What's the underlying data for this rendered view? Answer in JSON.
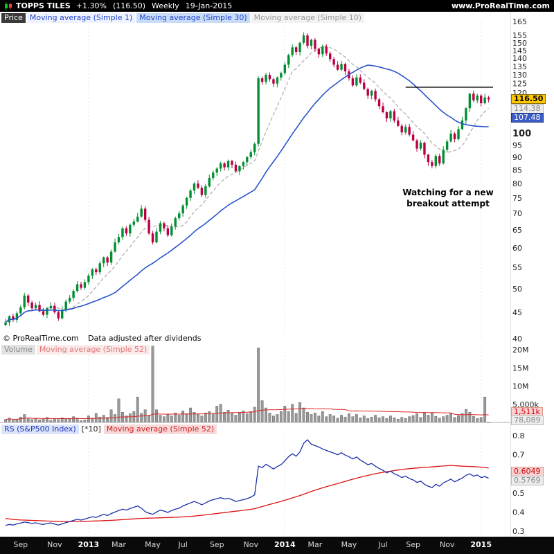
{
  "header": {
    "symbol": "TOPPS TILES",
    "change": "+1.30%",
    "last_price": "(116.50)",
    "timeframe": "Weekly",
    "date": "19-Jan-2015",
    "site": "www.ProRealTime.com"
  },
  "price_pane": {
    "legend": {
      "price": "Price",
      "ma1": "Moving average (Simple 1)",
      "ma30": "Moving average (Simple 30)",
      "ma10": "Moving average (Simple 10)"
    },
    "annotation": "Watching for a new breakout attempt",
    "footer_copyright": "© ProRealTime.com",
    "footer_note": "Data adjusted after dividends"
  },
  "volume_pane": {
    "legend": {
      "volume": "Volume",
      "ma52": "Moving average (Simple 52)"
    }
  },
  "rs_pane": {
    "legend": {
      "rs": "RS (S&P500 Index)",
      "multiplier": "[*10]",
      "ma52": "Moving average (Simple 52)"
    }
  },
  "badges": {
    "price_last": "116.50",
    "price_ma10": "114.38",
    "price_ma30": "107.48",
    "volume_ma": "1,511k",
    "volume_last": "78,089",
    "rs_ma": "0.6049",
    "rs_last": "0.5769"
  },
  "colors": {
    "candle_up": "#009030",
    "candle_down": "#bb0045",
    "ma30": "#2952cc",
    "ma10": "#b0b0b0",
    "volume_bar": "#999999",
    "volume_ma": "#dd2222",
    "rs_line": "#1a2fa8",
    "rs_ma": "#dd1111",
    "resistance": "#000000"
  },
  "x_axis": {
    "labels": [
      {
        "text": "Sep",
        "week": 4,
        "year": false
      },
      {
        "text": "Nov",
        "week": 13,
        "year": false
      },
      {
        "text": "2013",
        "week": 22,
        "year": true
      },
      {
        "text": "Mar",
        "week": 30,
        "year": false
      },
      {
        "text": "May",
        "week": 39,
        "year": false
      },
      {
        "text": "Jul",
        "week": 47,
        "year": false
      },
      {
        "text": "Sep",
        "week": 56,
        "year": false
      },
      {
        "text": "Nov",
        "week": 65,
        "year": false
      },
      {
        "text": "2014",
        "week": 74,
        "year": true
      },
      {
        "text": "Mar",
        "week": 82,
        "year": false
      },
      {
        "text": "May",
        "week": 91,
        "year": false
      },
      {
        "text": "Jul",
        "week": 100,
        "year": false
      },
      {
        "text": "Sep",
        "week": 108,
        "year": false
      },
      {
        "text": "Nov",
        "week": 117,
        "year": false
      },
      {
        "text": "2015",
        "week": 126,
        "year": true
      }
    ]
  },
  "chart_data": [
    {
      "type": "candlestick",
      "title": "TOPPS TILES weekly price",
      "x_unit": "week",
      "x_range": "Aug-2012 to 19-Jan-2015",
      "scale": "log",
      "ylim": [
        40,
        165
      ],
      "axis_ticks": [
        165,
        155,
        150,
        145,
        140,
        135,
        130,
        125,
        120,
        100,
        95,
        90,
        85,
        80,
        75,
        70,
        65,
        60,
        55,
        50,
        45,
        40
      ],
      "last_close": 116.5,
      "ma10_last": 114.38,
      "ma30_last": 107.48,
      "resistance_level": 123,
      "resistance_start_week": 106,
      "annotation": "Watching for a new breakout attempt",
      "closes": [
        43.0,
        44.2,
        43.5,
        44.8,
        46.0,
        48.5,
        47.0,
        45.8,
        46.5,
        45.2,
        44.5,
        45.8,
        46.3,
        45.0,
        43.8,
        45.5,
        47.2,
        48.0,
        49.5,
        51.0,
        50.2,
        51.5,
        53.0,
        54.5,
        53.8,
        56.0,
        57.5,
        56.2,
        59.0,
        61.5,
        63.0,
        65.5,
        64.0,
        66.5,
        67.5,
        69.0,
        71.5,
        68.0,
        64.0,
        61.5,
        64.5,
        67.0,
        65.5,
        63.5,
        66.0,
        68.5,
        70.0,
        72.5,
        75.0,
        77.5,
        80.0,
        78.5,
        76.0,
        79.0,
        82.0,
        84.0,
        85.5,
        87.5,
        86.0,
        88.5,
        87.0,
        84.5,
        86.5,
        88.0,
        90.0,
        92.0,
        95.5,
        128.0,
        126.0,
        130.0,
        127.5,
        125.0,
        128.5,
        131.0,
        136.0,
        142.0,
        147.0,
        144.0,
        150.0,
        155.0,
        148.0,
        152.0,
        146.0,
        142.5,
        147.5,
        143.0,
        139.5,
        136.0,
        133.0,
        136.5,
        132.0,
        128.0,
        124.0,
        128.5,
        125.5,
        122.0,
        118.5,
        121.0,
        116.5,
        113.0,
        110.0,
        107.0,
        110.5,
        106.0,
        103.5,
        100.5,
        103.0,
        99.5,
        97.0,
        93.5,
        96.0,
        91.0,
        88.0,
        86.5,
        90.5,
        87.5,
        93.0,
        96.5,
        100.0,
        97.5,
        102.0,
        106.0,
        112.0,
        119.5,
        116.0,
        118.5,
        114.5,
        117.5,
        116.5
      ]
    },
    {
      "type": "bar",
      "name": "volume",
      "units": "millions of shares",
      "ylim_millions": [
        0,
        21
      ],
      "axis_tick_labels": [
        "20M",
        "15M",
        "10M",
        "5,000k"
      ],
      "axis_tick_values": [
        20,
        15,
        10,
        5
      ],
      "ma52_last_label": "1,511k",
      "last_value_label": "78,089",
      "values_millions": [
        0.8,
        1.2,
        0.6,
        0.9,
        1.5,
        2.2,
        1.0,
        0.8,
        1.2,
        0.7,
        0.9,
        1.4,
        0.6,
        1.0,
        0.8,
        1.3,
        1.1,
        0.9,
        1.6,
        1.2,
        0.5,
        0.7,
        1.8,
        1.2,
        2.5,
        1.5,
        2.0,
        1.4,
        3.5,
        2.2,
        6.5,
        2.8,
        1.8,
        2.4,
        3.0,
        7.0,
        2.5,
        3.5,
        2.0,
        21.0,
        3.5,
        2.0,
        1.6,
        2.2,
        1.8,
        2.6,
        2.0,
        3.2,
        2.4,
        4.0,
        2.8,
        2.2,
        1.8,
        2.6,
        3.0,
        2.4,
        4.5,
        5.0,
        2.8,
        3.4,
        2.6,
        2.0,
        2.8,
        3.2,
        2.4,
        3.0,
        4.2,
        20.5,
        6.0,
        4.0,
        2.6,
        1.8,
        2.2,
        3.0,
        4.5,
        3.0,
        5.0,
        2.5,
        5.5,
        4.0,
        2.8,
        2.2,
        2.6,
        1.8,
        3.0,
        1.6,
        2.2,
        1.8,
        1.2,
        2.0,
        1.5,
        2.4,
        1.6,
        2.2,
        1.3,
        1.8,
        1.1,
        1.5,
        2.0,
        1.3,
        1.6,
        1.1,
        1.8,
        1.3,
        0.9,
        1.4,
        1.1,
        1.6,
        1.9,
        2.4,
        1.4,
        2.8,
        2.0,
        2.6,
        1.7,
        1.2,
        1.6,
        2.0,
        2.6,
        1.4,
        1.9,
        2.4,
        3.6,
        2.8,
        1.7,
        1.1,
        1.4,
        7.0,
        0.078
      ]
    },
    {
      "type": "line",
      "name": "RS vs S&P500 Index [*10]",
      "ylim": [
        0.27,
        0.85
      ],
      "axis_ticks": [
        0.8,
        0.7,
        0.5,
        0.4,
        0.3
      ],
      "ma52_last": 0.6049,
      "last_value": 0.5769,
      "values": [
        0.33,
        0.335,
        0.332,
        0.338,
        0.342,
        0.348,
        0.345,
        0.34,
        0.344,
        0.338,
        0.335,
        0.34,
        0.343,
        0.337,
        0.332,
        0.338,
        0.345,
        0.35,
        0.356,
        0.362,
        0.358,
        0.363,
        0.37,
        0.375,
        0.372,
        0.38,
        0.388,
        0.382,
        0.392,
        0.4,
        0.408,
        0.415,
        0.41,
        0.418,
        0.425,
        0.432,
        0.42,
        0.402,
        0.394,
        0.388,
        0.4,
        0.41,
        0.405,
        0.398,
        0.408,
        0.415,
        0.42,
        0.432,
        0.44,
        0.448,
        0.455,
        0.448,
        0.438,
        0.448,
        0.458,
        0.465,
        0.47,
        0.475,
        0.468,
        0.472,
        0.465,
        0.455,
        0.46,
        0.465,
        0.47,
        0.478,
        0.49,
        0.64,
        0.632,
        0.65,
        0.638,
        0.625,
        0.638,
        0.648,
        0.668,
        0.69,
        0.705,
        0.692,
        0.715,
        0.76,
        0.778,
        0.755,
        0.748,
        0.74,
        0.73,
        0.722,
        0.715,
        0.708,
        0.7,
        0.71,
        0.698,
        0.69,
        0.678,
        0.688,
        0.672,
        0.66,
        0.648,
        0.654,
        0.64,
        0.628,
        0.618,
        0.605,
        0.614,
        0.6,
        0.592,
        0.58,
        0.588,
        0.575,
        0.568,
        0.555,
        0.562,
        0.545,
        0.535,
        0.528,
        0.545,
        0.535,
        0.552,
        0.562,
        0.572,
        0.558,
        0.568,
        0.578,
        0.592,
        0.6,
        0.588,
        0.594,
        0.58,
        0.586,
        0.5769
      ]
    }
  ]
}
